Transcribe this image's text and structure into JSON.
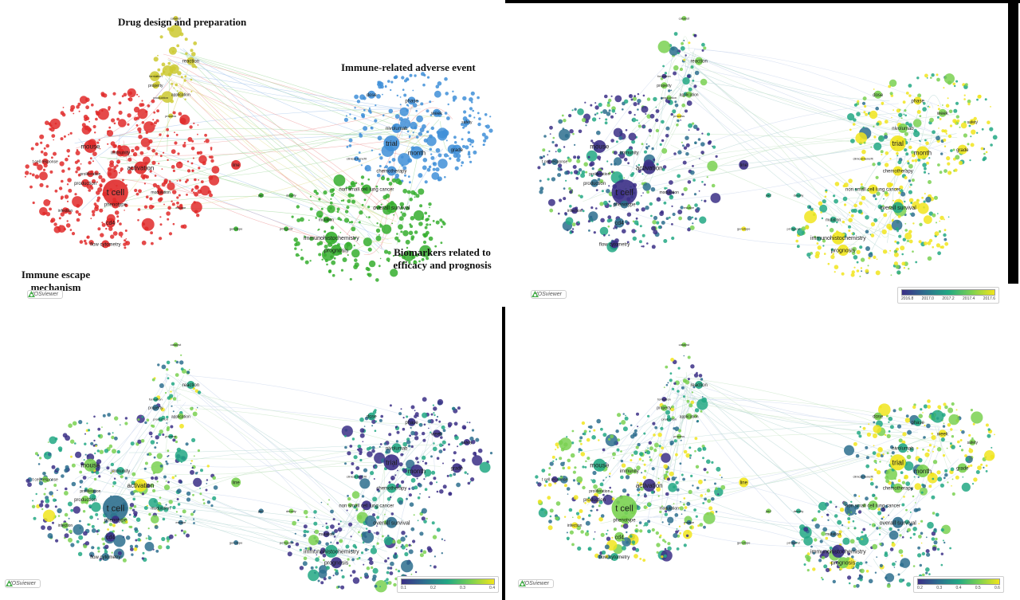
{
  "panels": [
    {
      "id": "cluster",
      "colors": {
        "red": "#e02a2a",
        "blue": "#3f8fd8",
        "green": "#35ae2e",
        "yellow": "#cdc930"
      },
      "annotations": {
        "drug_design": "Drug design and preparation",
        "irae": "Immune-related adverse event",
        "biomarkers": "Biomarkers related to efficacy and prognosis",
        "immune_escape": "Immune escape mechanism"
      },
      "logo": "VOSviewer"
    },
    {
      "id": "overlay-year",
      "logo": "VOSviewer",
      "legend": {
        "ticks": [
          "2016.8",
          "2017.0",
          "2017.2",
          "2017.4",
          "2017.6"
        ],
        "colors": [
          "#3b2f86",
          "#2d6f8e",
          "#22a884",
          "#7ad151",
          "#f1e51d"
        ]
      }
    },
    {
      "id": "overlay-citation",
      "logo": "VOSviewer",
      "legend": {
        "ticks": [
          "0.1",
          "0.2",
          "0.3",
          "0.4"
        ],
        "colors": [
          "#3b2f86",
          "#2d6f8e",
          "#22a884",
          "#7ad151",
          "#f1e51d"
        ]
      }
    },
    {
      "id": "overlay-score",
      "logo": "VOSviewer",
      "legend": {
        "ticks": [
          "0.2",
          "0.3",
          "0.4",
          "0.5",
          "0.6"
        ],
        "colors": [
          "#3b2f86",
          "#2d6f8e",
          "#22a884",
          "#7ad151",
          "#f1e51d"
        ]
      }
    }
  ],
  "nodes": [
    {
      "label": "t cell",
      "cluster": "red",
      "size": 16,
      "text": 11
    },
    {
      "label": "activation",
      "cluster": "red",
      "size": 8,
      "text": 8
    },
    {
      "label": "mouse",
      "cluster": "red",
      "size": 8,
      "text": 8
    },
    {
      "label": "immunity",
      "cluster": "red",
      "size": 5,
      "text": 6
    },
    {
      "label": "t cell response",
      "cluster": "red",
      "size": 4,
      "text": 5
    },
    {
      "label": "proliferation",
      "cluster": "red",
      "size": 4,
      "text": 5
    },
    {
      "label": "production",
      "cluster": "red",
      "size": 5,
      "text": 6
    },
    {
      "label": "phenotype",
      "cluster": "red",
      "size": 5,
      "text": 6
    },
    {
      "label": "infection",
      "cluster": "red",
      "size": 4,
      "text": 5
    },
    {
      "label": "cd4",
      "cluster": "red",
      "size": 6,
      "text": 7
    },
    {
      "label": "flow cytometry",
      "cluster": "red",
      "size": 5,
      "text": 6
    },
    {
      "label": "modulation",
      "cluster": "red",
      "size": 4,
      "text": 5
    },
    {
      "label": "line",
      "cluster": "red",
      "size": 6,
      "text": 6
    },
    {
      "label": "escape",
      "cluster": "red",
      "size": 3,
      "text": 4
    },
    {
      "label": "catalyst",
      "cluster": "yellow",
      "size": 3,
      "text": 4
    },
    {
      "label": "reaction",
      "cluster": "yellow",
      "size": 5,
      "text": 6
    },
    {
      "label": "formation",
      "cluster": "yellow",
      "size": 3,
      "text": 4
    },
    {
      "label": "property",
      "cluster": "yellow",
      "size": 4,
      "text": 5
    },
    {
      "label": "application",
      "cluster": "yellow",
      "size": 4,
      "text": 5
    },
    {
      "label": "production",
      "cluster": "yellow",
      "size": 3,
      "text": 4
    },
    {
      "label": "process",
      "cluster": "yellow",
      "size": 3,
      "text": 4
    },
    {
      "label": "dose",
      "cluster": "blue",
      "size": 5,
      "text": 6
    },
    {
      "label": "phase",
      "cluster": "blue",
      "size": 5,
      "text": 6
    },
    {
      "label": "week",
      "cluster": "blue",
      "size": 5,
      "text": 6
    },
    {
      "label": "nivolumab",
      "cluster": "blue",
      "size": 6,
      "text": 6
    },
    {
      "label": "trial",
      "cluster": "blue",
      "size": 10,
      "text": 9
    },
    {
      "label": "month",
      "cluster": "blue",
      "size": 8,
      "text": 8
    },
    {
      "label": "grade",
      "cluster": "blue",
      "size": 6,
      "text": 6
    },
    {
      "label": "clinical benefit",
      "cluster": "blue",
      "size": 3,
      "text": 4
    },
    {
      "label": "chemotherapy",
      "cluster": "blue",
      "size": 6,
      "text": 6
    },
    {
      "label": "safety",
      "cluster": "blue",
      "size": 4,
      "text": 5
    },
    {
      "label": "non small cell lung cancer",
      "cluster": "green",
      "size": 6,
      "text": 6
    },
    {
      "label": "overall survival",
      "cluster": "green",
      "size": 7,
      "text": 7
    },
    {
      "label": "mutation",
      "cluster": "green",
      "size": 4,
      "text": 5
    },
    {
      "label": "immunohistochemistry",
      "cluster": "green",
      "size": 8,
      "text": 7
    },
    {
      "label": "prognosis",
      "cluster": "green",
      "size": 7,
      "text": 7
    },
    {
      "label": "density",
      "cluster": "green",
      "size": 3,
      "text": 4
    },
    {
      "label": "jak2",
      "cluster": "green",
      "size": 3,
      "text": 4
    },
    {
      "label": "pd ligand",
      "cluster": "green",
      "size": 3,
      "text": 4
    },
    {
      "label": "genotype",
      "cluster": "green",
      "size": 3,
      "text": 4
    }
  ]
}
